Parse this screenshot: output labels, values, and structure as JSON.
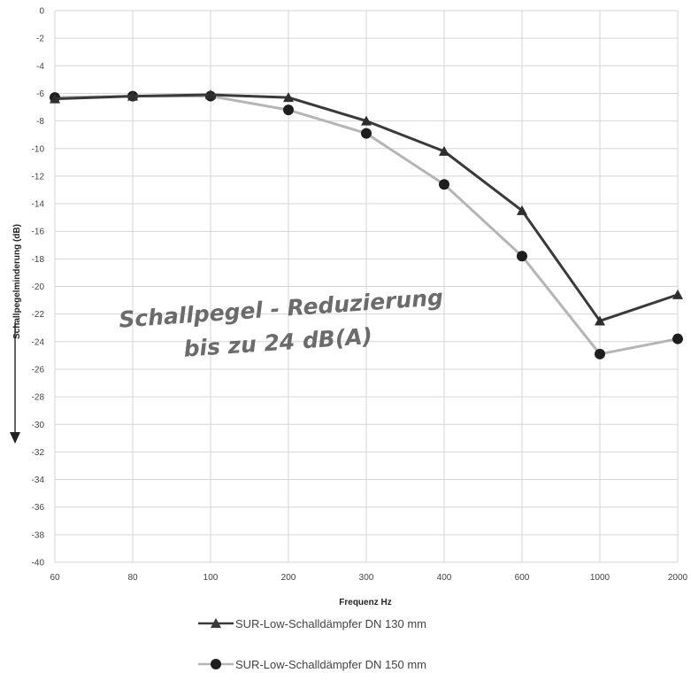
{
  "chart_data": {
    "type": "line",
    "title": "",
    "xlabel": "Frequenz Hz",
    "ylabel": "Schallpegelminderung (dB)",
    "categories": [
      "60",
      "80",
      "100",
      "200",
      "300",
      "400",
      "600",
      "1000",
      "2000"
    ],
    "ylim": [
      -40,
      0
    ],
    "yticks": [
      0,
      -2,
      -4,
      -6,
      -8,
      -10,
      -12,
      -14,
      -16,
      -18,
      -20,
      -22,
      -24,
      -26,
      -28,
      -30,
      -32,
      -34,
      -36,
      -38,
      -40
    ],
    "grid": true,
    "legend_position": "bottom",
    "series": [
      {
        "name": "SUR-Low-Schalldämpfer DN 130 mm",
        "values": [
          -6.4,
          -6.2,
          -6.1,
          -6.3,
          -8.0,
          -10.2,
          -14.5,
          -22.5,
          -20.6
        ],
        "color": "#3a3a3a",
        "marker": "triangle"
      },
      {
        "name": "SUR-Low-Schalldämpfer DN 150 mm",
        "values": [
          -6.3,
          -6.2,
          -6.2,
          -7.2,
          -8.9,
          -12.6,
          -17.8,
          -24.9,
          -23.8
        ],
        "color": "#b5b5b5",
        "marker": "circle"
      }
    ],
    "annotation": {
      "line1": "Schallpegel - Reduzierung",
      "line2": "bis zu 24 dB(A)"
    }
  }
}
